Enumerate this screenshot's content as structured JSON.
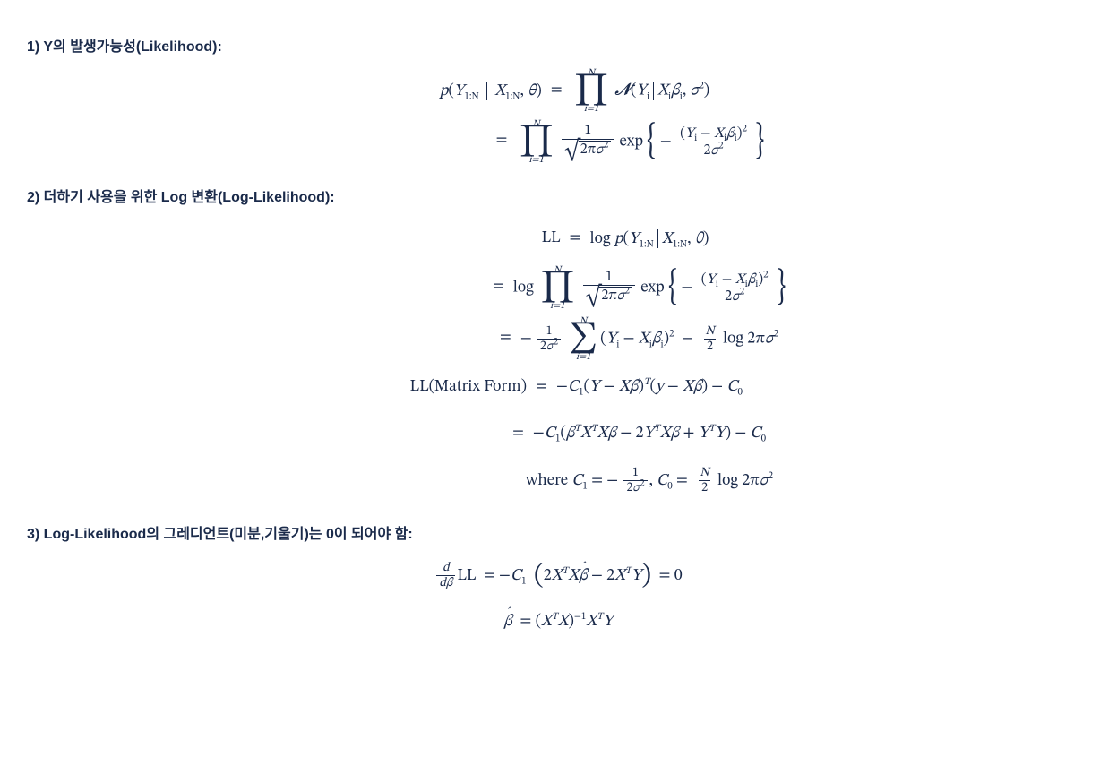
{
  "colors": {
    "text": "#1a2a4a",
    "rule": "#1a2a4a",
    "background": "#ffffff"
  },
  "typography": {
    "heading_pt": 16,
    "math_pt": 18,
    "limit_pt": 11,
    "heading_weight": 700
  },
  "section1": {
    "heading": "1) Y의 발생가능성(Likelihood):",
    "eq1": {
      "lhs_p": "p",
      "lhs_Y": "Y",
      "lhs_Y_sub": "1:N",
      "lhs_X": "X",
      "lhs_X_sub": "1:N",
      "lhs_theta": "θ",
      "prod_upper": "N",
      "prod_lower": "i=1",
      "N_sym": "𝒩",
      "Yi": "Y",
      "Yi_sub": "i",
      "Xi": "X",
      "Xi_sub": "i",
      "beta_i": "β",
      "beta_i_sub": "i",
      "sigma2": "σ",
      "sigma2_sup": "2"
    },
    "eq2": {
      "prod_upper": "N",
      "prod_lower": "i=1",
      "frac_num": "1",
      "sqrt_arg_2pi": "2π",
      "sqrt_sigma": "σ",
      "sqrt_sigma_sup": "2",
      "exp": "exp",
      "minus": "−",
      "num_Yi": "Y",
      "num_Yi_sub": "i",
      "num_Xi": "X",
      "num_Xi_sub": "i",
      "num_beta": "β",
      "num_beta_sub": "i",
      "num_sq_sup": "2",
      "den_2": "2",
      "den_sigma": "σ",
      "den_sigma_sup": "2"
    }
  },
  "section2": {
    "heading": "2) 더하기 사용을 위한 Log 변환(Log-Likelihood):",
    "line1": {
      "LL": "LL",
      "log": "log",
      "p": "p",
      "Y": "Y",
      "Ys": "1:N",
      "X": "X",
      "Xs": "1:N",
      "theta": "θ"
    },
    "line2": {
      "log": "log",
      "prod_upper": "N",
      "prod_lower": "i=1",
      "frac_num": "1",
      "sqrt_2pi": "2π",
      "sqrt_sigma": "σ",
      "sqrt_sigma_sup": "2",
      "exp": "exp",
      "minus": "−",
      "Yi": "Y",
      "Yi_sub": "i",
      "Xi": "X",
      "Xi_sub": "i",
      "bi": "β",
      "bi_sub": "i",
      "sq": "2",
      "den2": "2",
      "den_sigma": "σ",
      "den_sigma_sup": "2"
    },
    "line3": {
      "neg": "−",
      "num1": "1",
      "den2": "2",
      "den_sigma": "σ",
      "den_sigma_sup": "2",
      "sum_upper": "N",
      "sum_lower": "i=1",
      "Yi": "Y",
      "Yi_sub": "i",
      "Xi": "X",
      "Xi_sub": "i",
      "bi": "β",
      "bi_sub": "i",
      "sq": "2",
      "minus": "−",
      "N": "N",
      "two": "2",
      "log": "log",
      "tp": "2π",
      "sig": "σ",
      "sig_sup": "2"
    },
    "line4": {
      "lhs": "LL(Matrix Form)",
      "neg": "−",
      "C1": "C",
      "C1s": "1",
      "Y": "Y",
      "X": "X",
      "b": "β",
      "T": "T",
      "y2": "y",
      "C0": "C",
      "C0s": "0"
    },
    "line5": {
      "neg": "−",
      "C1": "C",
      "C1s": "1",
      "b": "β",
      "T": "T",
      "X": "X",
      "two": "2",
      "Y": "Y",
      "plus": "+",
      "minus": "−",
      "C0": "C",
      "C0s": "0"
    },
    "line6": {
      "where": "where ",
      "C1": "C",
      "C1s": "1",
      "eq": "=",
      "neg": "−",
      "num1": "1",
      "den2": "2",
      "sig": "σ",
      "sig_sup": "2",
      "comma": ", ",
      "C0": "C",
      "C0s": "0",
      "N": "N",
      "two": "2",
      "log": "log",
      "tp": "2π"
    }
  },
  "section3": {
    "heading": "3) Log-Likelihood의 그레디언트(미분,기울기)는 0이 되어야 함:",
    "line1": {
      "d": "d",
      "db": "dβ",
      "LL": "LL",
      "neg": "−",
      "C1": "C",
      "C1s": "1",
      "two": "2",
      "X": "X",
      "T": "T",
      "bhat": "β",
      "minus": "−",
      "Y": "Y",
      "eq0": "0"
    },
    "line2": {
      "bhat": "β",
      "X": "X",
      "T": "T",
      "inv": "−1",
      "Y": "Y"
    }
  }
}
